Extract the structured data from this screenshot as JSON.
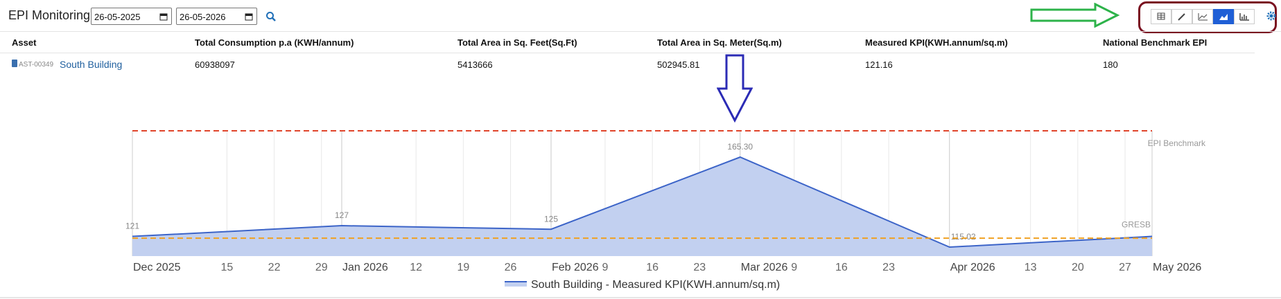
{
  "header": {
    "title": "EPI Monitoring",
    "date_from": "26-05-2025",
    "date_to": "26-05-2026"
  },
  "table": {
    "columns": [
      "Asset",
      "Total Consumption p.a (KWH/annum)",
      "Total Area in Sq. Feet(Sq.Ft)",
      "Total Area in Sq. Meter(Sq.m)",
      "Measured KPI(KWH.annum/sq.m)",
      "National Benchmark EPI"
    ],
    "rows": [
      {
        "asset_code": "AST-00349",
        "asset_name": "South Building",
        "cells": [
          "60938097",
          "5413666",
          "502945.81",
          "121.16",
          "180"
        ]
      }
    ]
  },
  "chart_data": {
    "type": "area",
    "x": [
      "2025-12-01",
      "2026-01-01",
      "2026-02-01",
      "2026-03-01",
      "2026-04-01",
      "2026-05-01"
    ],
    "xlim": [
      "2025-12-01",
      "2026-05-01"
    ],
    "xticks": [
      {
        "value": "2025-12-01",
        "label": "Dec 2025"
      },
      {
        "value": "2025-12-15",
        "label": "15"
      },
      {
        "value": "2025-12-22",
        "label": "22"
      },
      {
        "value": "2025-12-29",
        "label": "29"
      },
      {
        "value": "2026-01-01",
        "label": "Jan 2026"
      },
      {
        "value": "2026-01-12",
        "label": "12"
      },
      {
        "value": "2026-01-19",
        "label": "19"
      },
      {
        "value": "2026-01-26",
        "label": "26"
      },
      {
        "value": "2026-02-01",
        "label": "Feb 2026"
      },
      {
        "value": "2026-02-09",
        "label": "9"
      },
      {
        "value": "2026-02-16",
        "label": "16"
      },
      {
        "value": "2026-02-23",
        "label": "23"
      },
      {
        "value": "2026-03-01",
        "label": "Mar 2026"
      },
      {
        "value": "2026-03-09",
        "label": "9"
      },
      {
        "value": "2026-03-16",
        "label": "16"
      },
      {
        "value": "2026-03-23",
        "label": "23"
      },
      {
        "value": "2026-04-01",
        "label": "Apr 2026"
      },
      {
        "value": "2026-04-13",
        "label": "13"
      },
      {
        "value": "2026-04-20",
        "label": "20"
      },
      {
        "value": "2026-04-27",
        "label": "27"
      },
      {
        "value": "2026-05-01",
        "label": "May 2026"
      }
    ],
    "ylim": [
      110,
      180
    ],
    "series": [
      {
        "name": "South Building - Measured KPI(KWH.annum/sq.m)",
        "color": "#3c64c8",
        "fill": "#c2d0f0",
        "values": [
          121,
          127,
          125,
          165.3,
          115.02,
          121
        ],
        "value_labels": [
          "121",
          "127",
          "125",
          "165.30",
          "115.02",
          null
        ]
      }
    ],
    "reference_lines": [
      {
        "name": "EPI Benchmark",
        "value": 180,
        "color": "#e0442a"
      },
      {
        "name": "GRESB",
        "value": 120,
        "color": "#f0a020"
      }
    ]
  }
}
